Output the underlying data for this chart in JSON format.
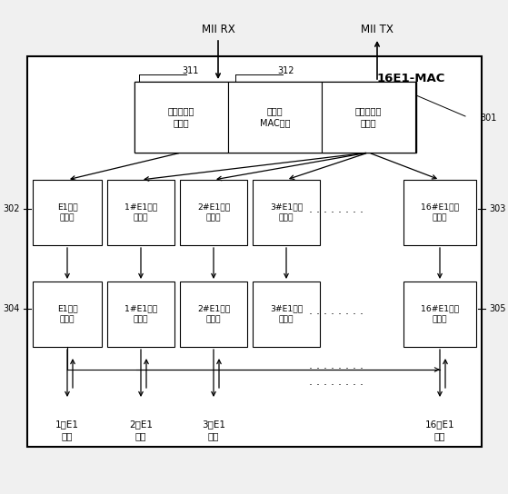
{
  "fig_width": 5.59,
  "fig_height": 5.44,
  "dpi": 100,
  "title_box": "16E1-MAC",
  "label_301": "301",
  "label_302": "302",
  "label_303": "303",
  "label_304": "304",
  "label_305": "305",
  "label_311": "311",
  "label_312": "312",
  "top_box_labels": [
    "以太网接收\n子模块",
    "以太网\nMAC模块",
    "以太网发送\n子模块"
  ],
  "buf_labels": [
    "E1发送\n缓冲区",
    "1#E1接收\n缓冲区",
    "2#E1接收\n缓冲区",
    "3#E1接收\n缓冲区",
    "16#E1接收\n缓冲区"
  ],
  "sub_labels": [
    "E1发送\n子模块",
    "1#E1接收\n子模块",
    "2#E1接收\n子模块",
    "3#E1接收\n子模块",
    "16#E1接收\n子模块"
  ],
  "port_labels": [
    "1号E1\n接口",
    "2号E1\n接口",
    "3号E1\n接口",
    "16号E1\n接口"
  ],
  "mii_rx": "MII RX",
  "mii_tx": "MII TX",
  "bg_color": "#f0f0f0",
  "box_bg": "white",
  "box_edge_color": "black",
  "text_color": "black",
  "font_size": 7.0,
  "font_size_label": 8.5,
  "font_size_title": 9.5
}
